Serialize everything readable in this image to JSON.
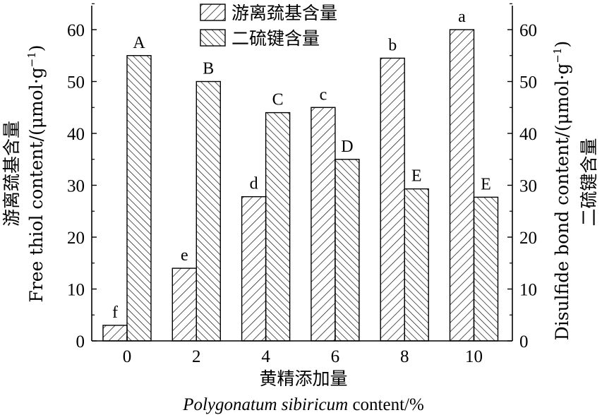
{
  "chart_data": {
    "type": "bar",
    "categories": [
      "0",
      "2",
      "4",
      "6",
      "8",
      "10"
    ],
    "series": [
      {
        "name": "游离巯基含量",
        "axis": "left",
        "hatch": "right-leaning diagonal",
        "values": [
          3.0,
          14.0,
          27.8,
          45.0,
          54.5,
          60.0
        ],
        "labels": [
          "f",
          "e",
          "d",
          "c",
          "b",
          "a"
        ]
      },
      {
        "name": "二硫键含量",
        "axis": "right",
        "hatch": "left-leaning diagonal",
        "values": [
          55.0,
          50.0,
          44.0,
          35.0,
          29.3,
          27.7
        ],
        "labels": [
          "A",
          "B",
          "C",
          "D",
          "E",
          "E"
        ]
      }
    ],
    "ylim": [
      0,
      65
    ],
    "y2lim": [
      0,
      65
    ],
    "yticks": [
      "0",
      "10",
      "20",
      "30",
      "40",
      "50",
      "60"
    ],
    "y2ticks": [
      "0",
      "10",
      "20",
      "30",
      "40",
      "50",
      "60"
    ],
    "ylabel_cn": "游离巯基含量",
    "ylabel_en": "Free thiol content/(μmol·g",
    "y2label_en": "Disulfide bond content/(μmol·g",
    "y2label_cn": "二硫键含量",
    "unit_exp": "−1",
    "unit_close": ")",
    "xlabel_cn": "黄精添加量",
    "xlabel_en_italic": "Polygonatum sibiricum",
    "xlabel_en_rest": " content/%",
    "legend_position": "top-center",
    "grid": false
  }
}
